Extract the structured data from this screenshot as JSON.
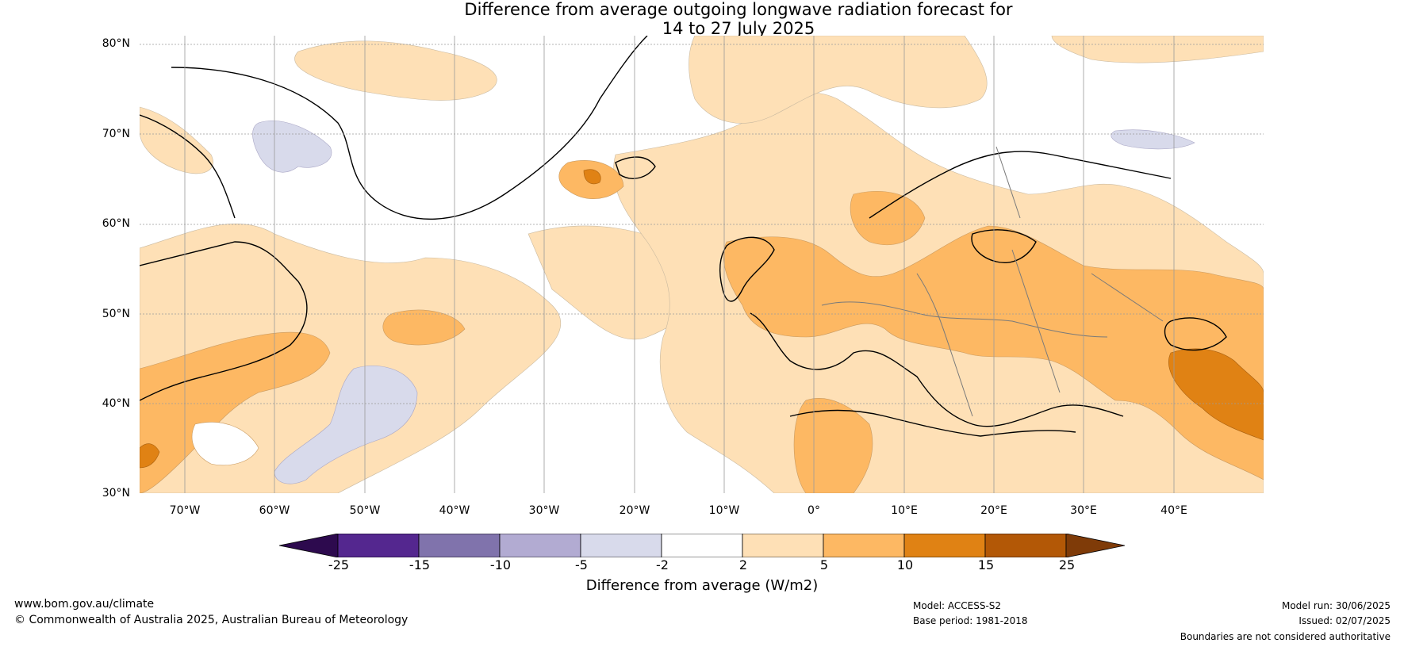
{
  "title": {
    "line1": "Difference from average outgoing longwave radiation forecast for",
    "line2": "14 to 27 July 2025"
  },
  "map": {
    "lat_labels": [
      "80°N",
      "70°N",
      "60°N",
      "50°N",
      "40°N",
      "30°N"
    ],
    "lon_labels": [
      "70°W",
      "60°W",
      "50°W",
      "40°W",
      "30°W",
      "20°W",
      "10°W",
      "0°",
      "10°E",
      "20°E",
      "30°E",
      "40°E"
    ]
  },
  "colorbar": {
    "ticks": [
      "-25",
      "-15",
      "-10",
      "-5",
      "-2",
      "2",
      "5",
      "10",
      "15",
      "25"
    ],
    "label": "Difference from average (W/m2)",
    "colors": {
      "below_-25": "#2d0a4e",
      "-25_-15": "#54278f",
      "-15_-10": "#8073ac",
      "-10_-5": "#b2abd2",
      "-5_-2": "#d8daeb",
      "-2_2": "#ffffff",
      "2_5": "#fee0b6",
      "5_10": "#fdb863",
      "10_15": "#e08214",
      "15_25": "#b35806",
      "above_25": "#7f3b08"
    }
  },
  "footer": {
    "website": "www.bom.gov.au/climate",
    "copyright": "© Commonwealth of Australia 2025, Australian Bureau of Meteorology",
    "model": "Model: ACCESS-S2",
    "base_period": "Base period: 1981-2018",
    "model_run": "Model run: 30/06/2025",
    "issued": "Issued: 02/07/2025",
    "disclaimer": "Boundaries are not considered authoritative"
  }
}
